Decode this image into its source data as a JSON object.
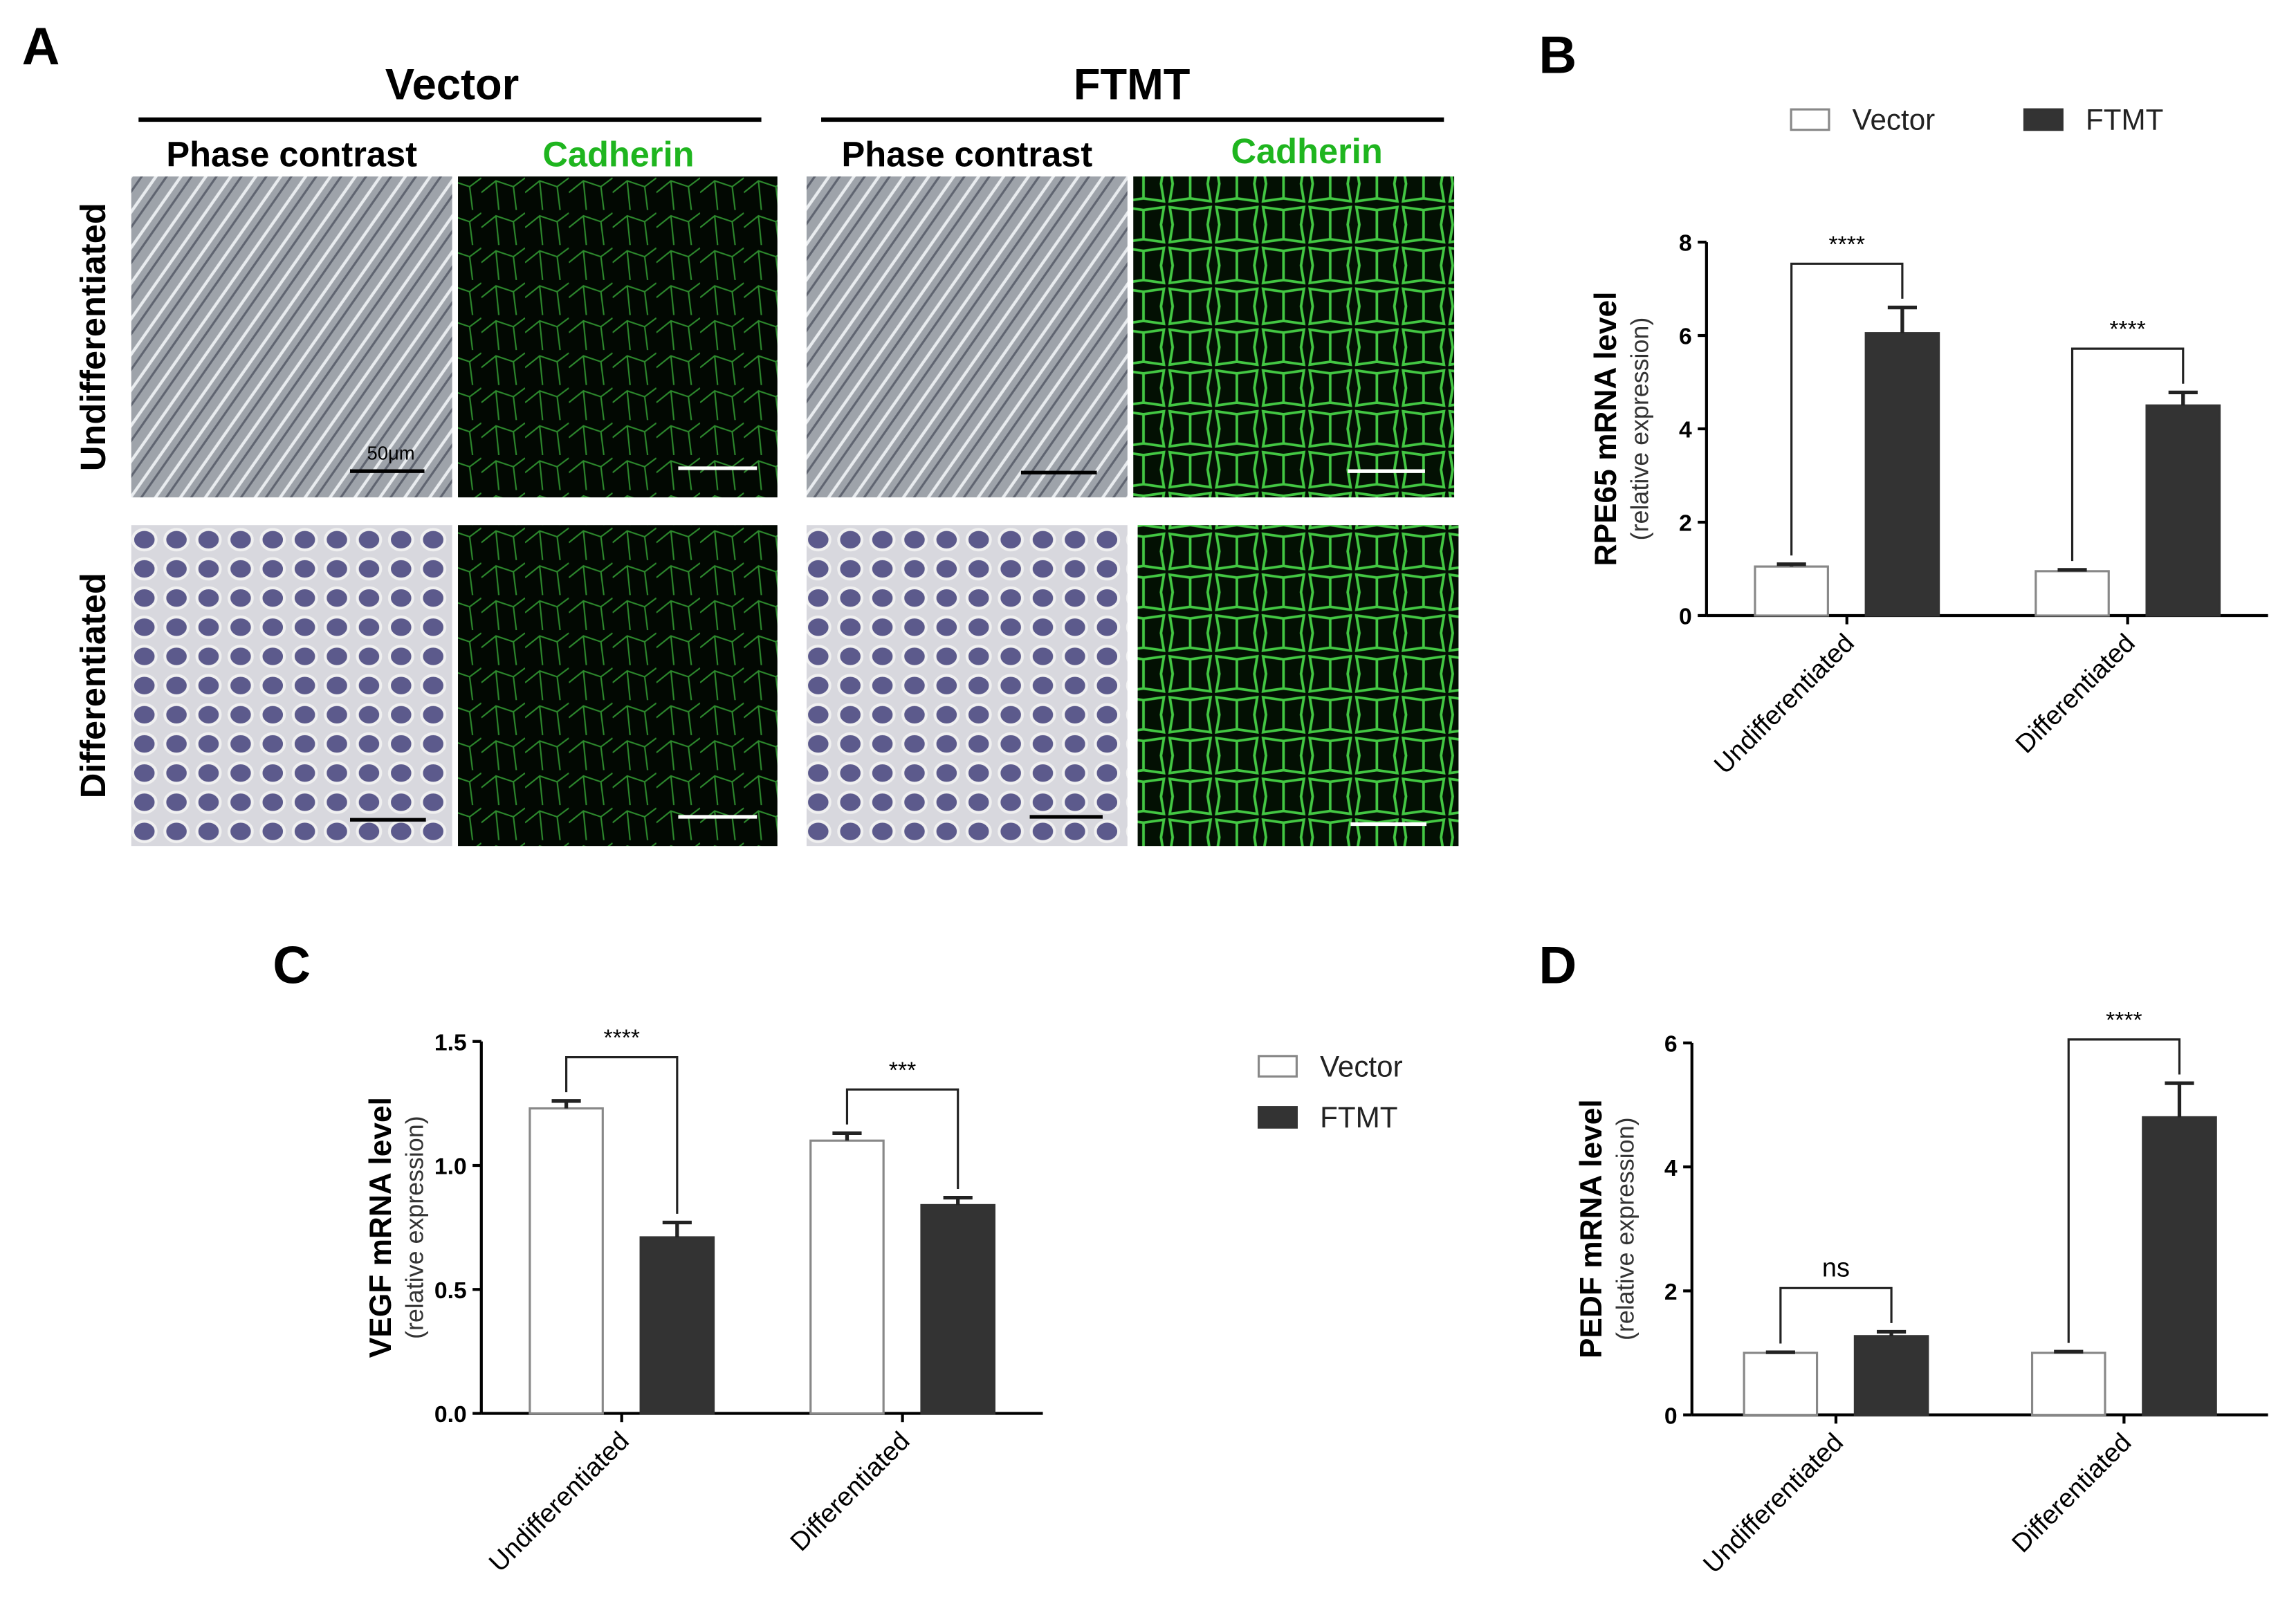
{
  "panel_a": {
    "label": "A",
    "columns": [
      {
        "title": "Vector",
        "subtitles": [
          "Phase contrast",
          "Cadherin"
        ]
      },
      {
        "title": "FTMT",
        "subtitles": [
          "Phase contrast",
          "Cadherin"
        ]
      }
    ],
    "rows": [
      "Undifferentiated",
      "Differentiated"
    ],
    "scale_label": "50μm"
  },
  "chart_data": [
    {
      "label": "B",
      "type": "bar",
      "y_label": "RPE65 mRNA level",
      "y_sublabel": "(relative expression)",
      "categories": [
        "Undifferentiated",
        "Differentiated"
      ],
      "series": [
        {
          "name": "Vector",
          "color": "#ffffff",
          "values": [
            1.05,
            0.95
          ],
          "errors": [
            0.05,
            0.03
          ]
        },
        {
          "name": "FTMT",
          "color": "#333333",
          "values": [
            6.05,
            4.5
          ],
          "errors": [
            0.55,
            0.28
          ]
        }
      ],
      "significance": [
        "****",
        "****"
      ],
      "ylim": [
        0,
        8
      ],
      "yticks": [
        0,
        2,
        4,
        6,
        8
      ],
      "legend": "top"
    },
    {
      "label": "C",
      "type": "bar",
      "y_label": "VEGF mRNA level",
      "y_sublabel": "(relative expression)",
      "categories": [
        "Undifferentiated",
        "Differentiated"
      ],
      "series": [
        {
          "name": "Vector",
          "color": "#ffffff",
          "values": [
            1.23,
            1.1
          ],
          "errors": [
            0.03,
            0.03
          ]
        },
        {
          "name": "FTMT",
          "color": "#333333",
          "values": [
            0.71,
            0.84
          ],
          "errors": [
            0.06,
            0.03
          ]
        }
      ],
      "significance": [
        "****",
        "***"
      ],
      "ylim": [
        0,
        1.5
      ],
      "yticks": [
        {
          "value": 0,
          "label": "0.0"
        },
        0.5,
        {
          "value": 1,
          "label": "1.0"
        },
        1.5
      ],
      "legend": "right"
    },
    {
      "label": "D",
      "type": "bar",
      "y_label": "PEDF mRNA level",
      "y_sublabel": "(relative expression)",
      "categories": [
        "Undifferentiated",
        "Differentiated"
      ],
      "series": [
        {
          "name": "Vector",
          "color": "#ffffff",
          "values": [
            1.0,
            1.0
          ],
          "errors": [
            0.01,
            0.02
          ]
        },
        {
          "name": "FTMT",
          "color": "#333333",
          "values": [
            1.27,
            4.8
          ],
          "errors": [
            0.07,
            0.55
          ]
        }
      ],
      "significance": [
        "ns",
        "****"
      ],
      "ylim": [
        0,
        6
      ],
      "yticks": [
        0,
        2,
        4,
        6
      ]
    }
  ]
}
